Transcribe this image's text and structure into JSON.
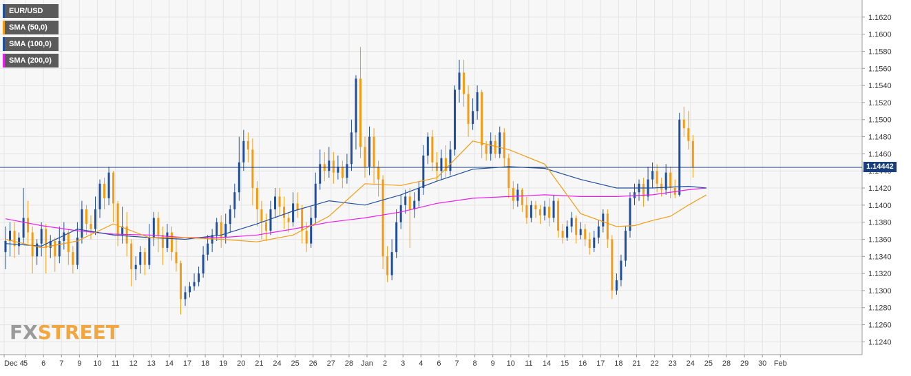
{
  "legend": [
    {
      "label": "EUR/USD",
      "color": "#1f4e9c"
    },
    {
      "label": "SMA (50,0)",
      "color": "#f39c12"
    },
    {
      "label": "SMA (100,0)",
      "color": "#1f4e9c"
    },
    {
      "label": "SMA (200,0)",
      "color": "#e91ee9"
    }
  ],
  "logo": {
    "part1": "FX",
    "part2": "STREET"
  },
  "current_price": "1.14442",
  "chart_data": {
    "type": "candlestick",
    "symbol": "EUR/USD",
    "ylim": [
      1.1225,
      1.164
    ],
    "y_ticks": [
      "1.1240",
      "1.1260",
      "1.1280",
      "1.1300",
      "1.1320",
      "1.1340",
      "1.1360",
      "1.1380",
      "1.1400",
      "1.1420",
      "1.1440",
      "1.1460",
      "1.1480",
      "1.1500",
      "1.1520",
      "1.1540",
      "1.1560",
      "1.1580",
      "1.1600",
      "1.1620"
    ],
    "x_labels": [
      "Dec 4",
      "5",
      "6",
      "7",
      "9",
      "10",
      "11",
      "12",
      "13",
      "14",
      "17",
      "18",
      "19",
      "20",
      "21",
      "24",
      "25",
      "26",
      "27",
      "28",
      "Jan",
      "2",
      "3",
      "4",
      "6",
      "7",
      "8",
      "9",
      "10",
      "11",
      "14",
      "15",
      "16",
      "17",
      "18",
      "21",
      "22",
      "23",
      "24",
      "25",
      "28",
      "29",
      "30",
      "Feb"
    ],
    "session_count": 44,
    "colors": {
      "up": "#1f4e9c",
      "down": "#f39c12",
      "sma50": "#f39c12",
      "sma100": "#1f4e9c",
      "sma200": "#e91ee9",
      "price_line": "#1a3d7c"
    },
    "sma50": [
      [
        0,
        1.136
      ],
      [
        2,
        1.135
      ],
      [
        4,
        1.1358
      ],
      [
        6,
        1.1378
      ],
      [
        8,
        1.1362
      ],
      [
        10,
        1.1362
      ],
      [
        12,
        1.136
      ],
      [
        14,
        1.1357
      ],
      [
        16,
        1.1365
      ],
      [
        18,
        1.1387
      ],
      [
        20,
        1.1425
      ],
      [
        22,
        1.1423
      ],
      [
        24,
        1.1432
      ],
      [
        26,
        1.1475
      ],
      [
        28,
        1.1465
      ],
      [
        30,
        1.1448
      ],
      [
        32,
        1.139
      ],
      [
        34,
        1.1375
      ],
      [
        35,
        1.1376
      ],
      [
        36,
        1.1382
      ],
      [
        37,
        1.1387
      ],
      [
        38,
        1.14
      ],
      [
        39,
        1.1412
      ]
    ],
    "sma100": [
      [
        0,
        1.1355
      ],
      [
        2,
        1.1352
      ],
      [
        4,
        1.1372
      ],
      [
        6,
        1.1365
      ],
      [
        8,
        1.1362
      ],
      [
        10,
        1.136
      ],
      [
        12,
        1.1365
      ],
      [
        14,
        1.1378
      ],
      [
        16,
        1.1393
      ],
      [
        18,
        1.1405
      ],
      [
        20,
        1.14
      ],
      [
        22,
        1.1412
      ],
      [
        24,
        1.1428
      ],
      [
        26,
        1.1442
      ],
      [
        28,
        1.1445
      ],
      [
        30,
        1.1443
      ],
      [
        32,
        1.143
      ],
      [
        34,
        1.142
      ],
      [
        36,
        1.142
      ],
      [
        38,
        1.1422
      ],
      [
        39,
        1.142
      ]
    ],
    "sma200": [
      [
        0,
        1.1384
      ],
      [
        2,
        1.1376
      ],
      [
        4,
        1.137
      ],
      [
        6,
        1.1366
      ],
      [
        8,
        1.1365
      ],
      [
        10,
        1.1362
      ],
      [
        12,
        1.1362
      ],
      [
        14,
        1.1365
      ],
      [
        16,
        1.1372
      ],
      [
        18,
        1.138
      ],
      [
        20,
        1.1385
      ],
      [
        22,
        1.1392
      ],
      [
        24,
        1.1402
      ],
      [
        26,
        1.1408
      ],
      [
        28,
        1.141
      ],
      [
        30,
        1.1412
      ],
      [
        32,
        1.141
      ],
      [
        34,
        1.141
      ],
      [
        36,
        1.1412
      ],
      [
        38,
        1.1418
      ],
      [
        39,
        1.142
      ]
    ],
    "candles": [
      [
        0,
        1.1345,
        1.1358,
        1.1325,
        1.1375
      ],
      [
        0.25,
        1.1358,
        1.137,
        1.134,
        1.138
      ],
      [
        0.5,
        1.137,
        1.1352,
        1.1338,
        1.138
      ],
      [
        0.75,
        1.1352,
        1.1362,
        1.1342,
        1.1368
      ],
      [
        1,
        1.1362,
        1.1385,
        1.1355,
        1.142
      ],
      [
        1.25,
        1.1385,
        1.1368,
        1.1355,
        1.1405
      ],
      [
        1.5,
        1.1368,
        1.134,
        1.132,
        1.1375
      ],
      [
        1.75,
        1.134,
        1.1355,
        1.133,
        1.136
      ],
      [
        2,
        1.1355,
        1.1372,
        1.134,
        1.138
      ],
      [
        2.25,
        1.1372,
        1.135,
        1.132,
        1.1378
      ],
      [
        2.5,
        1.135,
        1.1358,
        1.1338,
        1.1365
      ],
      [
        2.75,
        1.1358,
        1.134,
        1.1322,
        1.1362
      ],
      [
        3,
        1.134,
        1.1358,
        1.1332,
        1.1375
      ],
      [
        3.25,
        1.1358,
        1.1368,
        1.1348,
        1.138
      ],
      [
        3.5,
        1.1368,
        1.1345,
        1.133,
        1.1372
      ],
      [
        3.75,
        1.1345,
        1.133,
        1.132,
        1.1352
      ],
      [
        4,
        1.133,
        1.1362,
        1.1325,
        1.138
      ],
      [
        4.25,
        1.1362,
        1.1395,
        1.1355,
        1.1405
      ],
      [
        4.5,
        1.1395,
        1.1378,
        1.1365,
        1.14
      ],
      [
        4.75,
        1.1378,
        1.1372,
        1.136,
        1.1388
      ],
      [
        5,
        1.1372,
        1.1395,
        1.1365,
        1.141
      ],
      [
        5.25,
        1.1395,
        1.1425,
        1.1385,
        1.143
      ],
      [
        5.5,
        1.1425,
        1.1408,
        1.1395,
        1.1432
      ],
      [
        5.75,
        1.1408,
        1.1438,
        1.14,
        1.1445
      ],
      [
        6,
        1.1438,
        1.1402,
        1.138,
        1.144
      ],
      [
        6.25,
        1.1402,
        1.1365,
        1.1352,
        1.1405
      ],
      [
        6.5,
        1.1365,
        1.1375,
        1.1355,
        1.1398
      ],
      [
        6.75,
        1.1375,
        1.1355,
        1.134,
        1.1392
      ],
      [
        7,
        1.1355,
        1.1325,
        1.1305,
        1.136
      ],
      [
        7.25,
        1.1325,
        1.133,
        1.1312,
        1.134
      ],
      [
        7.5,
        1.133,
        1.1345,
        1.132,
        1.1352
      ],
      [
        7.75,
        1.1345,
        1.133,
        1.1318,
        1.135
      ],
      [
        8,
        1.133,
        1.1362,
        1.1325,
        1.1378
      ],
      [
        8.25,
        1.1362,
        1.1385,
        1.1352,
        1.1392
      ],
      [
        8.5,
        1.1385,
        1.1365,
        1.1345,
        1.1392
      ],
      [
        8.75,
        1.1365,
        1.135,
        1.133,
        1.1375
      ],
      [
        9,
        1.135,
        1.1368,
        1.1345,
        1.1378
      ],
      [
        9.25,
        1.1368,
        1.1345,
        1.1335,
        1.1375
      ],
      [
        9.5,
        1.1345,
        1.1332,
        1.1322,
        1.136
      ],
      [
        9.75,
        1.1332,
        1.129,
        1.1272,
        1.1335
      ],
      [
        10,
        1.129,
        1.1298,
        1.1282,
        1.1305
      ],
      [
        10.25,
        1.1298,
        1.1305,
        1.1292,
        1.131
      ],
      [
        10.5,
        1.1305,
        1.131,
        1.13,
        1.132
      ],
      [
        10.75,
        1.131,
        1.132,
        1.1305,
        1.1328
      ],
      [
        11,
        1.132,
        1.1342,
        1.1315,
        1.1352
      ],
      [
        11.25,
        1.1342,
        1.1355,
        1.1335,
        1.1365
      ],
      [
        11.5,
        1.1355,
        1.1365,
        1.1345,
        1.1372
      ],
      [
        11.75,
        1.1365,
        1.138,
        1.1358,
        1.1385
      ],
      [
        12,
        1.138,
        1.1362,
        1.135,
        1.1388
      ],
      [
        12.25,
        1.1362,
        1.1378,
        1.1355,
        1.139
      ],
      [
        12.5,
        1.1378,
        1.1395,
        1.1368,
        1.14
      ],
      [
        12.75,
        1.1395,
        1.1415,
        1.1385,
        1.1425
      ],
      [
        13,
        1.1415,
        1.145,
        1.1405,
        1.148
      ],
      [
        13.25,
        1.145,
        1.1475,
        1.144,
        1.1488
      ],
      [
        13.5,
        1.1475,
        1.1465,
        1.145,
        1.1485
      ],
      [
        13.75,
        1.1465,
        1.142,
        1.14,
        1.1478
      ],
      [
        14,
        1.142,
        1.1395,
        1.1375,
        1.1428
      ],
      [
        14.25,
        1.1395,
        1.138,
        1.136,
        1.1405
      ],
      [
        14.5,
        1.138,
        1.137,
        1.1358,
        1.139
      ],
      [
        14.75,
        1.137,
        1.1395,
        1.1365,
        1.1405
      ],
      [
        15,
        1.1395,
        1.141,
        1.1385,
        1.142
      ],
      [
        15.25,
        1.141,
        1.1398,
        1.1388,
        1.142
      ],
      [
        15.5,
        1.1398,
        1.1385,
        1.1372,
        1.141
      ],
      [
        15.75,
        1.1385,
        1.138,
        1.1368,
        1.1392
      ],
      [
        16,
        1.138,
        1.1402,
        1.1375,
        1.1415
      ],
      [
        16.25,
        1.1402,
        1.1395,
        1.1385,
        1.1415
      ],
      [
        16.5,
        1.1395,
        1.137,
        1.1355,
        1.14
      ],
      [
        16.75,
        1.137,
        1.1355,
        1.1345,
        1.138
      ],
      [
        17,
        1.1355,
        1.1385,
        1.135,
        1.1398
      ],
      [
        17.25,
        1.1385,
        1.1425,
        1.1378,
        1.1438
      ],
      [
        17.5,
        1.1425,
        1.1448,
        1.1418,
        1.1465
      ],
      [
        17.75,
        1.1448,
        1.144,
        1.1428,
        1.1462
      ],
      [
        18,
        1.144,
        1.1452,
        1.1432,
        1.1468
      ],
      [
        18.25,
        1.1452,
        1.1438,
        1.1425,
        1.1462
      ],
      [
        18.5,
        1.1438,
        1.1445,
        1.143,
        1.1458
      ],
      [
        18.75,
        1.1445,
        1.1432,
        1.142,
        1.1452
      ],
      [
        19,
        1.1432,
        1.1448,
        1.1425,
        1.146
      ],
      [
        19.25,
        1.1448,
        1.1485,
        1.144,
        1.15
      ],
      [
        19.5,
        1.1485,
        1.1548,
        1.1465,
        1.1552
      ],
      [
        19.75,
        1.1548,
        1.1468,
        1.1455,
        1.1585
      ],
      [
        20,
        1.1468,
        1.1445,
        1.1432,
        1.148
      ],
      [
        20.25,
        1.1445,
        1.148,
        1.1435,
        1.1492
      ],
      [
        20.5,
        1.148,
        1.1445,
        1.1425,
        1.149
      ],
      [
        20.75,
        1.1445,
        1.143,
        1.141,
        1.1452
      ],
      [
        21,
        1.143,
        1.134,
        1.1325,
        1.1435
      ],
      [
        21.25,
        1.134,
        1.1318,
        1.131,
        1.1352
      ],
      [
        21.5,
        1.1318,
        1.1345,
        1.1312,
        1.136
      ],
      [
        21.75,
        1.1345,
        1.138,
        1.1338,
        1.1395
      ],
      [
        22,
        1.138,
        1.14,
        1.1372,
        1.1412
      ],
      [
        22.25,
        1.14,
        1.141,
        1.139,
        1.1418
      ],
      [
        22.5,
        1.141,
        1.1395,
        1.135,
        1.142
      ],
      [
        22.75,
        1.1395,
        1.1405,
        1.1385,
        1.1415
      ],
      [
        23,
        1.1405,
        1.142,
        1.1398,
        1.1428
      ],
      [
        23.25,
        1.142,
        1.1458,
        1.1412,
        1.147
      ],
      [
        23.5,
        1.1458,
        1.148,
        1.1448,
        1.1485
      ],
      [
        23.75,
        1.148,
        1.145,
        1.144,
        1.1488
      ],
      [
        24,
        1.145,
        1.144,
        1.1428,
        1.1462
      ],
      [
        24.25,
        1.144,
        1.1455,
        1.143,
        1.1465
      ],
      [
        24.5,
        1.1455,
        1.144,
        1.1432,
        1.147
      ],
      [
        24.75,
        1.144,
        1.1465,
        1.1435,
        1.1475
      ],
      [
        25,
        1.1465,
        1.1535,
        1.1458,
        1.154
      ],
      [
        25.25,
        1.1535,
        1.1555,
        1.152,
        1.157
      ],
      [
        25.5,
        1.1555,
        1.153,
        1.1515,
        1.157
      ],
      [
        25.75,
        1.153,
        1.1495,
        1.148,
        1.154
      ],
      [
        26,
        1.1495,
        1.151,
        1.1488,
        1.1525
      ],
      [
        26.25,
        1.151,
        1.1532,
        1.15,
        1.154
      ],
      [
        26.5,
        1.1532,
        1.147,
        1.1455,
        1.1535
      ],
      [
        26.75,
        1.147,
        1.146,
        1.1452,
        1.1475
      ],
      [
        27,
        1.146,
        1.1475,
        1.1452,
        1.1485
      ],
      [
        27.25,
        1.1475,
        1.146,
        1.1455,
        1.1482
      ],
      [
        27.5,
        1.146,
        1.1485,
        1.1455,
        1.1492
      ],
      [
        27.75,
        1.1485,
        1.1455,
        1.1445,
        1.149
      ],
      [
        28,
        1.1455,
        1.142,
        1.1408,
        1.146
      ],
      [
        28.25,
        1.142,
        1.1405,
        1.1395,
        1.1428
      ],
      [
        28.5,
        1.1405,
        1.1418,
        1.1398,
        1.1425
      ],
      [
        28.75,
        1.1418,
        1.14,
        1.1392,
        1.142
      ],
      [
        29,
        1.14,
        1.1385,
        1.1378,
        1.141
      ],
      [
        29.25,
        1.1385,
        1.14,
        1.138,
        1.1405
      ],
      [
        29.5,
        1.14,
        1.1395,
        1.1385,
        1.1405
      ],
      [
        29.75,
        1.1395,
        1.1388,
        1.1378,
        1.14
      ],
      [
        30,
        1.1388,
        1.1398,
        1.1382,
        1.1405
      ],
      [
        30.25,
        1.1398,
        1.1385,
        1.1375,
        1.1408
      ],
      [
        30.5,
        1.1385,
        1.1405,
        1.138,
        1.1412
      ],
      [
        30.75,
        1.1405,
        1.137,
        1.1362,
        1.1408
      ],
      [
        31,
        1.137,
        1.1362,
        1.1355,
        1.1378
      ],
      [
        31.25,
        1.1362,
        1.1375,
        1.1358,
        1.1382
      ],
      [
        31.5,
        1.1375,
        1.1385,
        1.1368,
        1.1392
      ],
      [
        31.75,
        1.1385,
        1.1365,
        1.1355,
        1.1388
      ],
      [
        32,
        1.1365,
        1.1372,
        1.136,
        1.138
      ],
      [
        32.25,
        1.1372,
        1.136,
        1.1352,
        1.1378
      ],
      [
        32.5,
        1.136,
        1.135,
        1.1342,
        1.1368
      ],
      [
        32.75,
        1.135,
        1.1362,
        1.1345,
        1.137
      ],
      [
        33,
        1.1362,
        1.1375,
        1.1355,
        1.1382
      ],
      [
        33.25,
        1.1375,
        1.139,
        1.1368,
        1.1395
      ],
      [
        33.5,
        1.139,
        1.136,
        1.135,
        1.1395
      ],
      [
        33.75,
        1.136,
        1.13,
        1.129,
        1.1365
      ],
      [
        34,
        1.13,
        1.1312,
        1.1295,
        1.132
      ],
      [
        34.25,
        1.1312,
        1.1335,
        1.1305,
        1.1342
      ],
      [
        34.5,
        1.1335,
        1.137,
        1.1328,
        1.1375
      ],
      [
        34.75,
        1.137,
        1.1408,
        1.1362,
        1.1415
      ],
      [
        35,
        1.1408,
        1.1415,
        1.14,
        1.1425
      ],
      [
        35.25,
        1.1415,
        1.1425,
        1.1405,
        1.143
      ],
      [
        35.5,
        1.1425,
        1.141,
        1.1398,
        1.1432
      ],
      [
        35.75,
        1.141,
        1.143,
        1.1405,
        1.1445
      ],
      [
        36,
        1.143,
        1.144,
        1.142,
        1.145
      ],
      [
        36.25,
        1.144,
        1.1425,
        1.1415,
        1.1448
      ],
      [
        36.5,
        1.1425,
        1.1418,
        1.141,
        1.1432
      ],
      [
        36.75,
        1.1418,
        1.1438,
        1.1412,
        1.1448
      ],
      [
        37,
        1.1438,
        1.142,
        1.1408,
        1.1445
      ],
      [
        37.25,
        1.142,
        1.1412,
        1.1408,
        1.143
      ],
      [
        37.5,
        1.1412,
        1.15,
        1.141,
        1.1508
      ],
      [
        37.75,
        1.15,
        1.149,
        1.148,
        1.1515
      ],
      [
        38,
        1.149,
        1.1475,
        1.1465,
        1.151
      ],
      [
        38.25,
        1.1475,
        1.1444,
        1.1432,
        1.1482
      ]
    ]
  }
}
